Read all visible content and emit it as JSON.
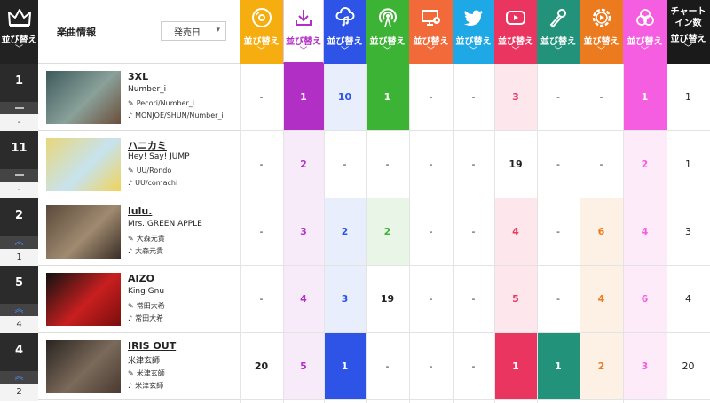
{
  "sort_label": "並び替え",
  "song_info_label": "楽曲情報",
  "release_select": {
    "value": "発売日"
  },
  "chart_count_label": "チャート\nイン数",
  "columns": [
    {
      "id": "cd",
      "icon": "cd-icon",
      "color": "#f6ad0f",
      "tint": "#fff6e0",
      "strong": "#f6ad0f"
    },
    {
      "id": "download",
      "icon": "download-icon",
      "color": "#ffffff",
      "tint": "#f7ebfa",
      "strong": "#b12fc4"
    },
    {
      "id": "streaming",
      "icon": "cloud-music-icon",
      "color": "#2d54e6",
      "tint": "#e8eefc",
      "strong": "#2d54e6"
    },
    {
      "id": "radio",
      "icon": "radio-icon",
      "color": "#3db336",
      "tint": "#e9f6e7",
      "strong": "#3db336"
    },
    {
      "id": "pc-lookup",
      "icon": "monitor-disc-icon",
      "color": "#f26a3a",
      "tint": "#fdeee8",
      "strong": "#f26a3a"
    },
    {
      "id": "twitter",
      "icon": "twitter-icon",
      "color": "#1ea8e6",
      "tint": "#e6f5fc",
      "strong": "#1ea8e6"
    },
    {
      "id": "youtube",
      "icon": "youtube-icon",
      "color": "#ea3560",
      "tint": "#fde7ec",
      "strong": "#ea3560"
    },
    {
      "id": "karaoke",
      "icon": "microphone-icon",
      "color": "#22927a",
      "tint": "#e4f3ef",
      "strong": "#22927a"
    },
    {
      "id": "gyao",
      "icon": "play-gear-icon",
      "color": "#ec7a1e",
      "tint": "#fdf1e5",
      "strong": "#ec7a1e"
    },
    {
      "id": "tiktok",
      "icon": "circles-icon",
      "color": "#f55ee0",
      "tint": "#fdebfa",
      "strong": "#f55ee0"
    },
    {
      "id": "count",
      "icon": "",
      "color": "#1a1a1a",
      "tint": "#ffffff",
      "strong": "#1a1a1a"
    }
  ],
  "rows": [
    {
      "rank": "1",
      "last_week": "-",
      "move": "same",
      "title": "3XL",
      "artist": "Number_i",
      "lyricist": "Pecori/Number_i",
      "composer": "MONJOE/SHUN/Number_i",
      "thumb_colors": [
        "#3c5a5c",
        "#8aa19a",
        "#6b4e3a"
      ],
      "cells": [
        {
          "v": "-",
          "s": "none"
        },
        {
          "v": "1",
          "s": "strong"
        },
        {
          "v": "10",
          "s": "tint"
        },
        {
          "v": "1",
          "s": "strong"
        },
        {
          "v": "-",
          "s": "none"
        },
        {
          "v": "-",
          "s": "none"
        },
        {
          "v": "3",
          "s": "tint"
        },
        {
          "v": "-",
          "s": "none"
        },
        {
          "v": "-",
          "s": "none"
        },
        {
          "v": "1",
          "s": "strong"
        },
        {
          "v": "1",
          "s": "none"
        }
      ]
    },
    {
      "rank": "11",
      "last_week": "-",
      "move": "same",
      "title": "ハニカミ",
      "artist": "Hey! Say! JUMP",
      "lyricist": "UU/Rondo",
      "composer": "UU/comachi",
      "thumb_colors": [
        "#e8d77a",
        "#c7e3ef",
        "#f0d35a"
      ],
      "cells": [
        {
          "v": "-",
          "s": "none"
        },
        {
          "v": "2",
          "s": "tint"
        },
        {
          "v": "-",
          "s": "none"
        },
        {
          "v": "-",
          "s": "none"
        },
        {
          "v": "-",
          "s": "none"
        },
        {
          "v": "-",
          "s": "none"
        },
        {
          "v": "19",
          "s": "none"
        },
        {
          "v": "-",
          "s": "none"
        },
        {
          "v": "-",
          "s": "none"
        },
        {
          "v": "2",
          "s": "tint"
        },
        {
          "v": "1",
          "s": "none"
        }
      ]
    },
    {
      "rank": "2",
      "last_week": "1",
      "move": "up",
      "title": "lulu.",
      "artist": "Mrs. GREEN APPLE",
      "lyricist": "大森元貴",
      "composer": "大森元貴",
      "thumb_colors": [
        "#5a4a3a",
        "#a08a70",
        "#3a2e26"
      ],
      "cells": [
        {
          "v": "-",
          "s": "none"
        },
        {
          "v": "3",
          "s": "tint"
        },
        {
          "v": "2",
          "s": "tint"
        },
        {
          "v": "2",
          "s": "tint"
        },
        {
          "v": "-",
          "s": "none"
        },
        {
          "v": "-",
          "s": "none"
        },
        {
          "v": "4",
          "s": "tint"
        },
        {
          "v": "-",
          "s": "none"
        },
        {
          "v": "6",
          "s": "tint"
        },
        {
          "v": "4",
          "s": "tint"
        },
        {
          "v": "3",
          "s": "none"
        }
      ]
    },
    {
      "rank": "5",
      "last_week": "4",
      "move": "up",
      "title": "AIZO",
      "artist": "King Gnu",
      "lyricist": "常田大希",
      "composer": "常田大希",
      "thumb_colors": [
        "#111111",
        "#c81f1f",
        "#7a0d0d"
      ],
      "cells": [
        {
          "v": "-",
          "s": "none"
        },
        {
          "v": "4",
          "s": "tint"
        },
        {
          "v": "3",
          "s": "tint"
        },
        {
          "v": "19",
          "s": "none"
        },
        {
          "v": "-",
          "s": "none"
        },
        {
          "v": "-",
          "s": "none"
        },
        {
          "v": "5",
          "s": "tint"
        },
        {
          "v": "-",
          "s": "none"
        },
        {
          "v": "4",
          "s": "tint"
        },
        {
          "v": "6",
          "s": "tint"
        },
        {
          "v": "4",
          "s": "none"
        }
      ]
    },
    {
      "rank": "4",
      "last_week": "2",
      "move": "up",
      "title": "IRIS OUT",
      "artist": "米津玄師",
      "lyricist": "米津玄師",
      "composer": "米津玄師",
      "thumb_colors": [
        "#2a2420",
        "#7a6a5a",
        "#4a3a30"
      ],
      "cells": [
        {
          "v": "20",
          "s": "none"
        },
        {
          "v": "5",
          "s": "tint"
        },
        {
          "v": "1",
          "s": "strong"
        },
        {
          "v": "-",
          "s": "none"
        },
        {
          "v": "-",
          "s": "none"
        },
        {
          "v": "-",
          "s": "none"
        },
        {
          "v": "1",
          "s": "strong"
        },
        {
          "v": "1",
          "s": "strong"
        },
        {
          "v": "2",
          "s": "tint"
        },
        {
          "v": "3",
          "s": "tint"
        },
        {
          "v": "20",
          "s": "none"
        }
      ]
    }
  ]
}
